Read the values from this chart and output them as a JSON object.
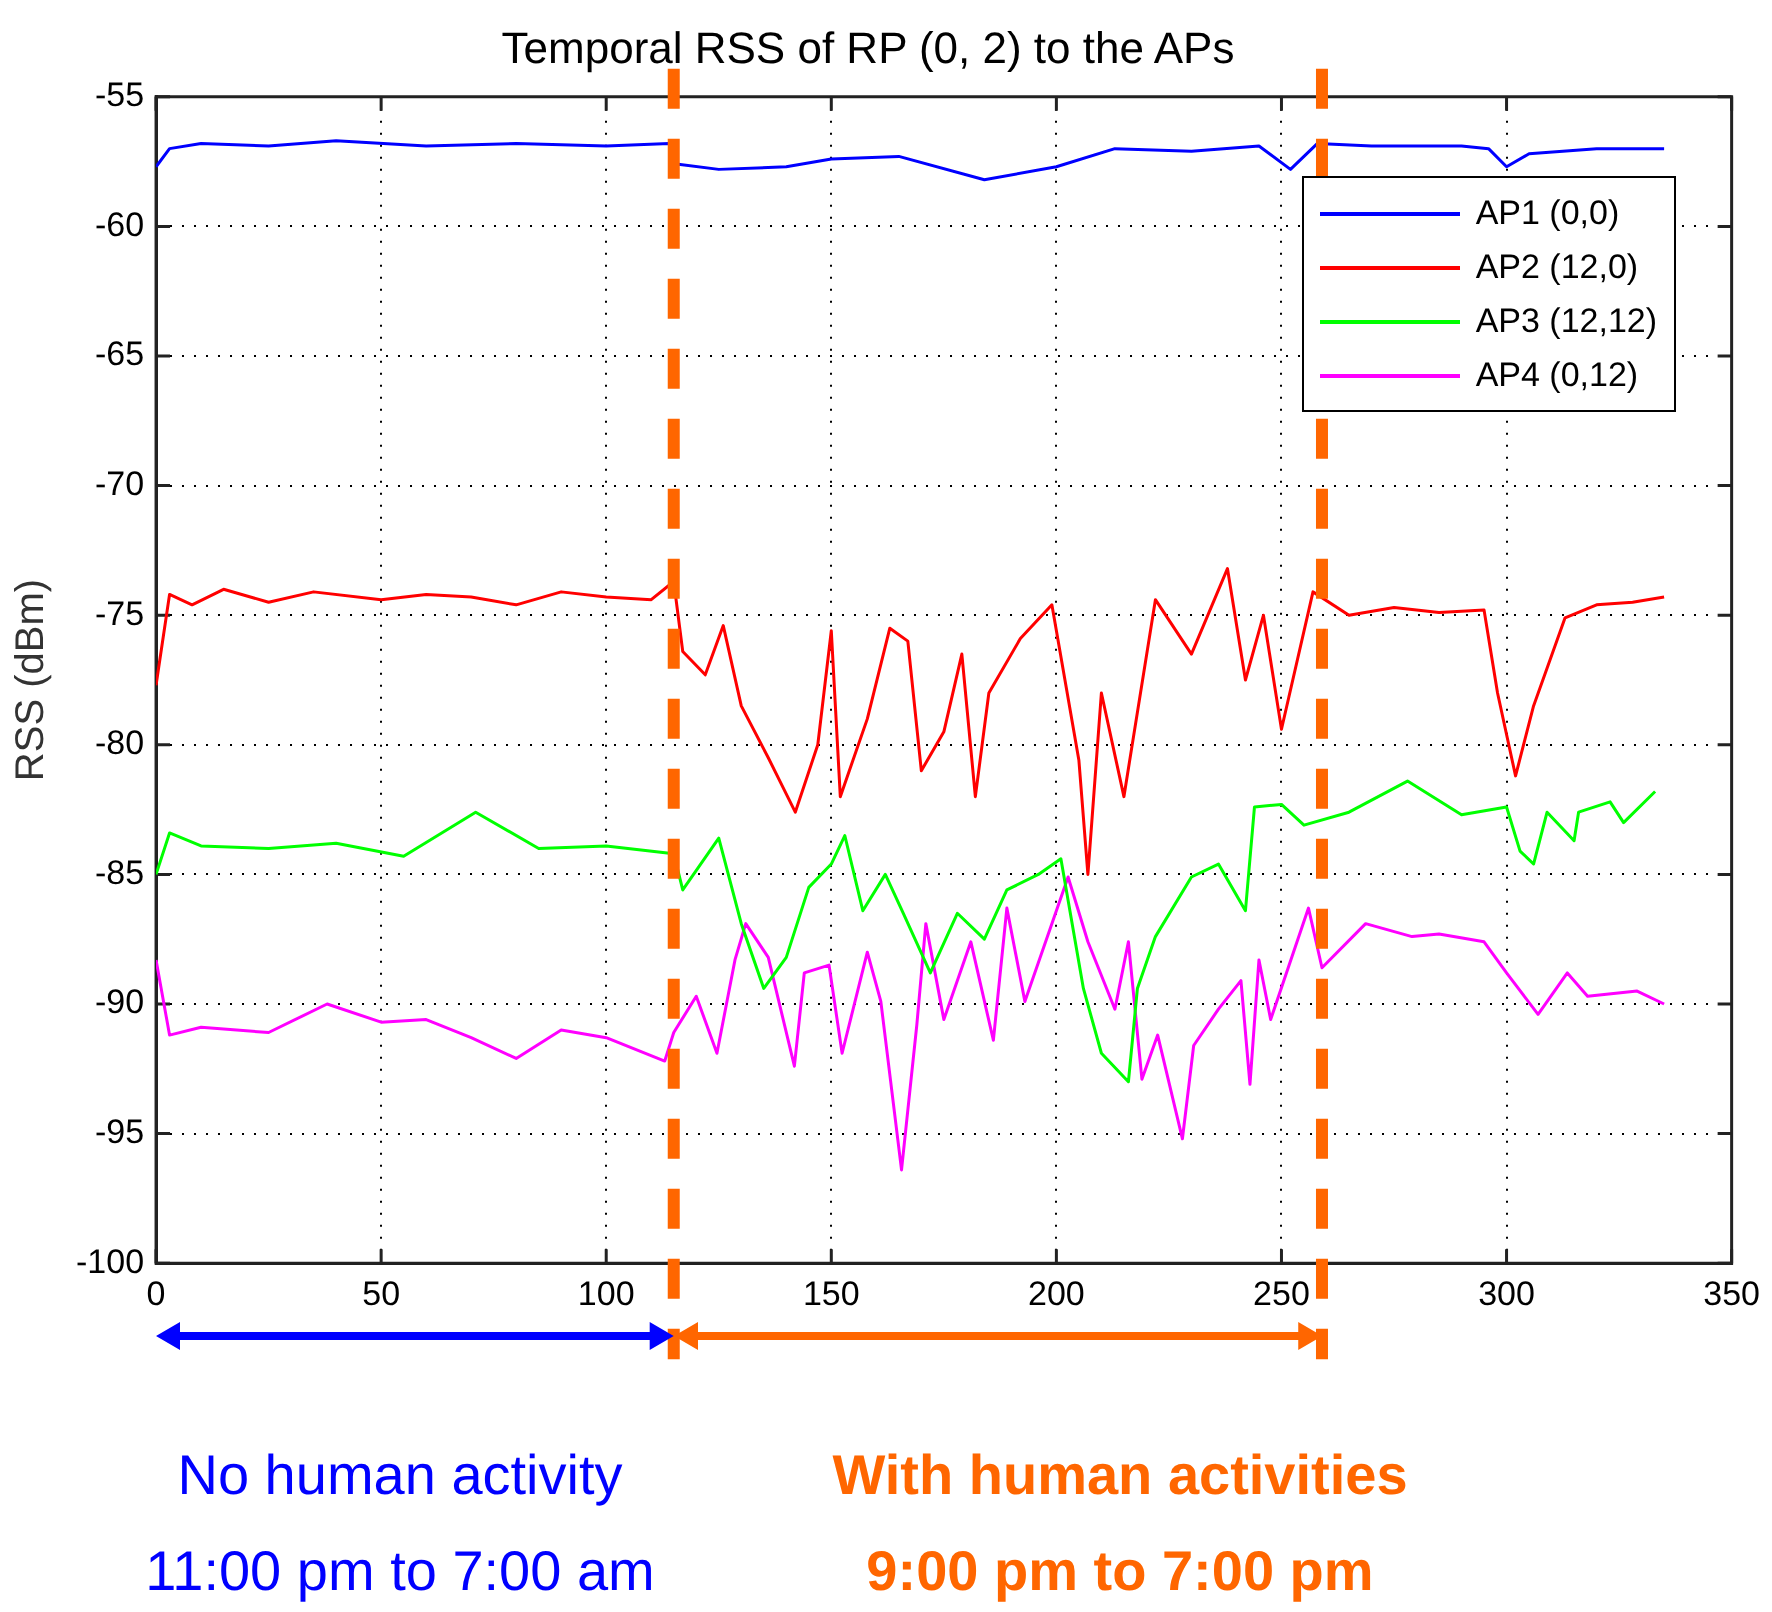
{
  "chart_data": {
    "type": "line",
    "title": "Temporal RSS of RP (0, 2) to the APs",
    "ylabel": "RSS (dBm)",
    "xlim": [
      0,
      350
    ],
    "xticks": [
      0,
      50,
      100,
      150,
      200,
      250,
      300,
      350
    ],
    "ylim": [
      -100,
      -55
    ],
    "yticks": [
      -100,
      -95,
      -90,
      -85,
      -80,
      -75,
      -70,
      -65,
      -60,
      -55
    ],
    "grid": true,
    "legend": "top right",
    "marker": "none",
    "line_style": "solid",
    "series": [
      {
        "name": "AP1 (0,0)",
        "color": "#0000ff",
        "x": [
          0,
          3,
          10,
          25,
          40,
          60,
          80,
          100,
          114,
          116,
          125,
          140,
          150,
          165,
          184,
          200,
          213,
          230,
          245,
          252,
          258,
          270,
          290,
          296,
          300,
          305,
          320,
          335
        ],
        "values": [
          -57.7,
          -57.0,
          -56.8,
          -56.9,
          -56.7,
          -56.9,
          -56.8,
          -56.9,
          -56.8,
          -57.6,
          -57.8,
          -57.7,
          -57.4,
          -57.3,
          -58.2,
          -57.7,
          -57.0,
          -57.1,
          -56.9,
          -57.8,
          -56.8,
          -56.9,
          -56.9,
          -57.0,
          -57.7,
          -57.2,
          -57.0,
          -57.0
        ]
      },
      {
        "name": "AP2 (12,0)",
        "color": "#ff0000",
        "x": [
          0,
          3,
          8,
          15,
          25,
          35,
          50,
          60,
          70,
          80,
          90,
          100,
          110,
          115,
          117,
          122,
          126,
          130,
          136,
          142,
          147,
          150,
          152,
          158,
          163,
          167,
          170,
          175,
          179,
          182,
          185,
          192,
          199,
          205,
          207,
          210,
          215,
          222,
          230,
          238,
          242,
          246,
          250,
          257,
          265,
          275,
          285,
          295,
          298,
          302,
          306,
          313,
          320,
          328,
          335
        ],
        "values": [
          -77.7,
          -74.2,
          -74.6,
          -74.0,
          -74.5,
          -74.1,
          -74.4,
          -74.2,
          -74.3,
          -74.6,
          -74.1,
          -74.3,
          -74.4,
          -73.7,
          -76.4,
          -77.3,
          -75.4,
          -78.5,
          -80.5,
          -82.6,
          -80.0,
          -75.6,
          -82.0,
          -79.0,
          -75.5,
          -76.0,
          -81.0,
          -79.5,
          -76.5,
          -82.0,
          -78.0,
          -75.9,
          -74.6,
          -80.6,
          -85.0,
          -78.0,
          -82.0,
          -74.4,
          -76.5,
          -73.2,
          -77.5,
          -75.0,
          -79.4,
          -74.1,
          -75.0,
          -74.7,
          -74.9,
          -74.8,
          -78.0,
          -81.2,
          -78.5,
          -75.1,
          -74.6,
          -74.5,
          -74.3
        ]
      },
      {
        "name": "AP3 (12,12)",
        "color": "#00ff00",
        "x": [
          0,
          3,
          10,
          25,
          40,
          55,
          71,
          85,
          100,
          115,
          117,
          125,
          130,
          135,
          140,
          145,
          150,
          153,
          157,
          162,
          166,
          172,
          178,
          184,
          189,
          196,
          201,
          206,
          210,
          216,
          218,
          222,
          230,
          236,
          242,
          244,
          250,
          255,
          265,
          278,
          290,
          300,
          303,
          306,
          309,
          315,
          316,
          323,
          326,
          333
        ],
        "values": [
          -85.0,
          -83.4,
          -83.9,
          -84.0,
          -83.8,
          -84.3,
          -82.6,
          -84.0,
          -83.9,
          -84.2,
          -85.6,
          -83.6,
          -86.9,
          -89.4,
          -88.2,
          -85.5,
          -84.6,
          -83.5,
          -86.4,
          -85.0,
          -86.5,
          -88.8,
          -86.5,
          -87.5,
          -85.6,
          -85.0,
          -84.4,
          -89.4,
          -91.9,
          -93.0,
          -89.4,
          -87.4,
          -85.1,
          -84.6,
          -86.4,
          -82.4,
          -82.3,
          -83.1,
          -82.6,
          -81.4,
          -82.7,
          -82.4,
          -84.1,
          -84.6,
          -82.6,
          -83.7,
          -82.6,
          -82.2,
          -83.0,
          -81.8
        ]
      },
      {
        "name": "AP4 (0,12)",
        "color": "#ff00ff",
        "x": [
          0,
          3,
          10,
          25,
          38,
          50,
          60,
          70,
          80,
          90,
          100,
          113,
          115,
          120,
          124.6,
          128.6,
          131,
          136,
          141.8,
          144,
          149.5,
          152.4,
          158,
          161,
          165.6,
          169,
          171,
          175,
          181,
          186,
          189,
          193,
          202.6,
          207,
          213,
          216,
          219,
          222.5,
          228,
          230.5,
          236,
          241,
          243,
          245,
          247.6,
          256,
          259,
          268.7,
          279,
          285,
          295,
          300,
          307,
          313.5,
          318,
          329,
          335
        ],
        "values": [
          -88.3,
          -91.2,
          -90.9,
          -91.1,
          -90.0,
          -90.7,
          -90.6,
          -91.3,
          -92.1,
          -91.0,
          -91.3,
          -92.2,
          -91.1,
          -89.7,
          -91.9,
          -88.3,
          -86.9,
          -88.2,
          -92.4,
          -88.8,
          -88.5,
          -91.9,
          -88.0,
          -89.9,
          -96.4,
          -90.8,
          -86.9,
          -90.6,
          -87.6,
          -91.4,
          -86.3,
          -89.9,
          -85.1,
          -87.6,
          -90.2,
          -87.6,
          -92.9,
          -91.2,
          -95.2,
          -91.6,
          -90.2,
          -89.1,
          -93.1,
          -88.3,
          -90.6,
          -86.3,
          -88.6,
          -86.9,
          -87.4,
          -87.3,
          -87.6,
          -88.8,
          -90.4,
          -88.8,
          -89.7,
          -89.5,
          -90.0
        ]
      }
    ],
    "ref_lines": [
      {
        "axis": "x",
        "value": 115,
        "color": "#ff6600",
        "line_style": "dashed"
      },
      {
        "axis": "x",
        "value": 259,
        "color": "#ff6600",
        "line_style": "dashed"
      }
    ],
    "annotations": [
      "No human activity",
      "11:00 pm to 7:00 am",
      "With human activities",
      "9:00 pm to 7:00 pm"
    ]
  }
}
